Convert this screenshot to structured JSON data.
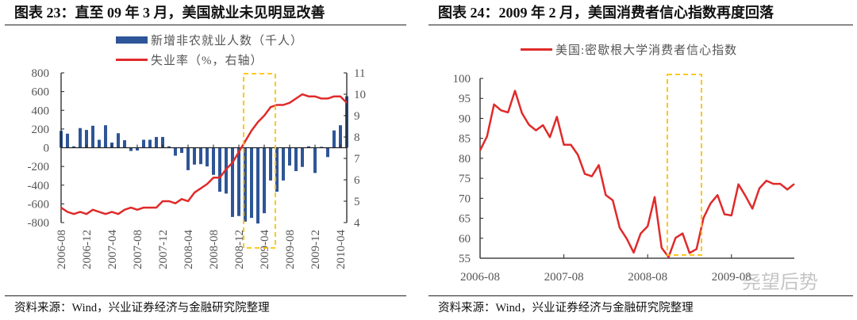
{
  "left": {
    "title": "图表 23：直至 09 年 3 月，美国就业未见明显改善",
    "source": "资料来源：Wind，兴业证券经济与金融研究院整理"
  },
  "right": {
    "title": "图表 24：2009 年 2 月，美国消费者信心指数再度回落",
    "source": "资料来源：Wind，兴业证券经济与金融研究院整理",
    "watermark": "尧望后势"
  },
  "colors": {
    "bar": "#2E5597",
    "line": "#E02A2A",
    "highlight": "#FFC000",
    "axis": "#222222"
  },
  "chart_data": [
    {
      "type": "bar+line",
      "x_start": "2006-08",
      "x_end": "2010-05",
      "x_frequency": "monthly",
      "xtick_labels": [
        "2006-08",
        "2006-12",
        "2007-04",
        "2007-08",
        "2007-12",
        "2008-04",
        "2008-08",
        "2008-12",
        "2009-04",
        "2009-08",
        "2009-12",
        "2010-04"
      ],
      "xtick_index": [
        0,
        4,
        8,
        12,
        16,
        20,
        24,
        28,
        32,
        36,
        40,
        44
      ],
      "ylim": [
        -800,
        800
      ],
      "yticks": [
        -800,
        -600,
        -400,
        -200,
        0,
        200,
        400,
        600,
        800
      ],
      "y2lim": [
        4,
        11
      ],
      "y2ticks": [
        4,
        5,
        6,
        7,
        8,
        9,
        10,
        11
      ],
      "legend_placement": "top",
      "highlight_range": [
        "2008-12",
        "2009-05"
      ],
      "series": [
        {
          "name": "新增非农就业人数（千人）",
          "type": "bar",
          "axis": "left",
          "values": [
            180,
            150,
            15,
            210,
            190,
            235,
            85,
            240,
            55,
            155,
            80,
            -35,
            -30,
            85,
            85,
            115,
            115,
            15,
            -85,
            -55,
            -240,
            -180,
            -175,
            -200,
            -290,
            -470,
            -490,
            -740,
            -730,
            -790,
            -750,
            -810,
            -700,
            -350,
            -470,
            -350,
            -190,
            -250,
            -205,
            15,
            -270,
            10,
            -100,
            185,
            240,
            550
          ]
        },
        {
          "name": "失业率（%，右轴）",
          "type": "line",
          "axis": "right",
          "values": [
            4.7,
            4.5,
            4.4,
            4.5,
            4.4,
            4.6,
            4.5,
            4.4,
            4.5,
            4.4,
            4.6,
            4.7,
            4.6,
            4.7,
            4.7,
            4.7,
            5.0,
            5.0,
            4.9,
            5.1,
            5.0,
            5.4,
            5.6,
            5.8,
            6.1,
            6.1,
            6.5,
            6.8,
            7.3,
            7.8,
            8.3,
            8.7,
            9.0,
            9.4,
            9.5,
            9.5,
            9.6,
            9.8,
            10.0,
            9.9,
            9.9,
            9.8,
            9.8,
            9.9,
            9.9,
            9.6
          ]
        }
      ]
    },
    {
      "type": "line",
      "x_start": "2006-08",
      "x_end": "2010-05",
      "x_frequency": "monthly",
      "xtick_labels": [
        "2006-08",
        "2007-08",
        "2008-08",
        "2009-08"
      ],
      "xtick_index": [
        0,
        12,
        24,
        36
      ],
      "ylim": [
        55,
        100
      ],
      "yticks": [
        55,
        60,
        65,
        70,
        75,
        80,
        85,
        90,
        95,
        100
      ],
      "legend_placement": "top",
      "highlight_range": [
        "2008-11",
        "2009-04"
      ],
      "series": [
        {
          "name": "美国:密歇根大学消费者信心指数",
          "values": [
            82,
            85.5,
            93.5,
            92,
            91.5,
            96.9,
            91.3,
            88.4,
            87,
            88.3,
            85.3,
            90.4,
            83.4,
            83.4,
            80.9,
            76.1,
            75.5,
            78.3,
            70.8,
            69.5,
            62.6,
            59.9,
            56.4,
            61.2,
            63,
            70.3,
            57.6,
            55.3,
            60.1,
            61.2,
            56.3,
            57.3,
            65.1,
            68.7,
            70.8,
            66,
            65.7,
            73.5,
            70.6,
            67.4,
            72.5,
            74.4,
            73.6,
            73.6,
            72.2,
            73.6
          ]
        }
      ]
    }
  ]
}
